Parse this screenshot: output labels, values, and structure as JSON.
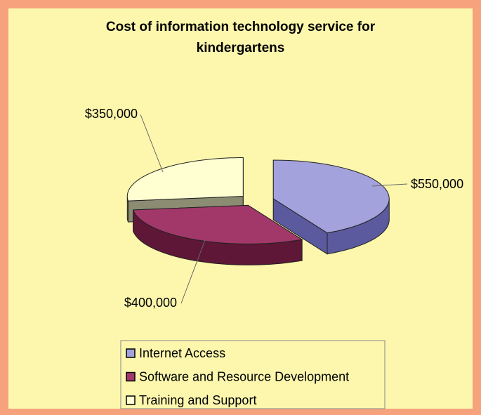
{
  "chart_data": {
    "type": "pie3d",
    "title": "Cost of information technology service for kindergartens",
    "categories": [
      "Internet Access",
      "Software and Resource Development",
      "Training and Support"
    ],
    "values": [
      550000,
      400000,
      350000
    ],
    "value_labels": [
      "$550,000",
      "$400,000",
      "$350,000"
    ],
    "colors": [
      "#a3a2dc",
      "#a2386a",
      "#ffffd2"
    ],
    "side_colors": [
      "#5b5a9e",
      "#5e1736",
      "#8c8c72"
    ],
    "legend": "bottom"
  }
}
